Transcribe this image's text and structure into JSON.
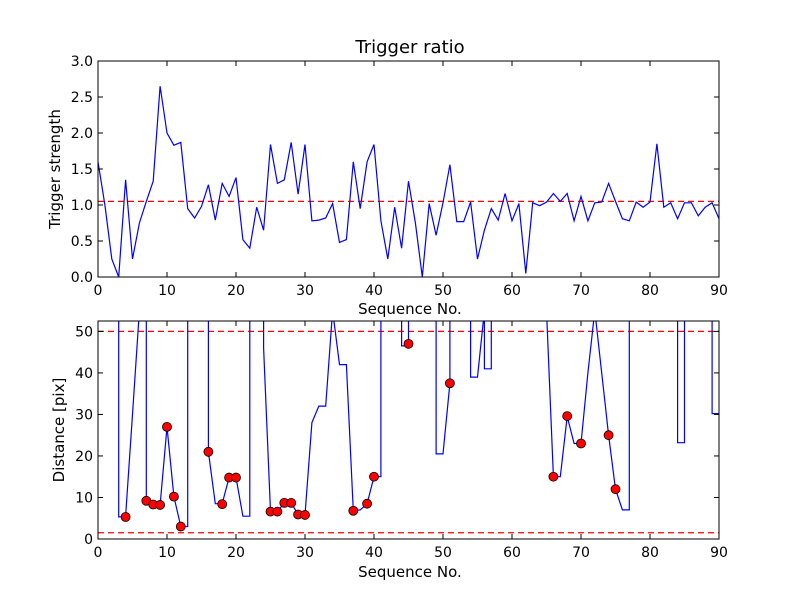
{
  "chart_data": [
    {
      "type": "line",
      "title": "Trigger ratio",
      "xlabel": "Sequence No.",
      "ylabel": "Trigger strength",
      "xlim": [
        0,
        90
      ],
      "ylim": [
        0,
        3.0
      ],
      "xticks": [
        0,
        10,
        20,
        30,
        40,
        50,
        60,
        70,
        80,
        90
      ],
      "yticks": [
        0.0,
        0.5,
        1.0,
        1.5,
        2.0,
        2.5,
        3.0
      ],
      "ytick_labels": [
        "0.0",
        "0.5",
        "1.0",
        "1.5",
        "2.0",
        "2.5",
        "3.0"
      ],
      "line_color": "#0000ff",
      "reference_lines": [
        {
          "y": 1.05,
          "color": "#ff0000",
          "style": "dashed"
        }
      ],
      "series": [
        {
          "x": [
            0,
            1,
            2,
            3,
            4,
            5,
            6,
            7,
            8,
            9,
            10,
            11,
            12,
            13,
            14,
            15,
            16,
            17,
            18,
            19,
            20,
            21,
            22,
            23,
            24,
            25,
            26,
            27,
            28,
            29,
            30,
            31,
            32,
            33,
            34,
            35,
            36,
            37,
            38,
            39,
            40,
            41,
            42,
            43,
            44,
            45,
            46,
            47,
            48,
            49,
            50,
            51,
            52,
            53,
            54,
            55,
            56,
            57,
            58,
            59,
            60,
            61,
            62,
            63,
            64,
            65,
            66,
            67,
            68,
            69,
            70,
            71,
            72,
            73,
            74,
            75,
            76,
            77,
            78,
            79,
            80,
            81,
            82,
            83,
            84,
            85,
            86,
            87,
            88,
            89,
            90
          ],
          "y": [
            1.6,
            1.0,
            0.25,
            0.0,
            1.35,
            0.25,
            0.75,
            1.05,
            1.33,
            2.65,
            2.0,
            1.83,
            1.87,
            0.95,
            0.82,
            0.98,
            1.28,
            0.79,
            1.3,
            1.12,
            1.38,
            0.52,
            0.4,
            0.97,
            0.65,
            1.84,
            1.3,
            1.35,
            1.87,
            1.15,
            1.84,
            0.78,
            0.79,
            0.82,
            1.02,
            0.48,
            0.52,
            1.6,
            0.95,
            1.6,
            1.84,
            0.78,
            0.25,
            0.97,
            0.4,
            1.33,
            0.75,
            0.0,
            1.02,
            0.58,
            1.03,
            1.56,
            0.77,
            0.77,
            1.04,
            0.25,
            0.65,
            0.95,
            0.79,
            1.16,
            0.78,
            1.02,
            0.05,
            1.03,
            0.99,
            1.04,
            1.16,
            1.05,
            1.16,
            0.78,
            1.12,
            0.78,
            1.03,
            1.04,
            1.3,
            1.05,
            0.81,
            0.78,
            1.04,
            0.97,
            1.04,
            1.85,
            0.97,
            1.03,
            0.81,
            1.03,
            1.03,
            0.85,
            0.97,
            1.03,
            0.81
          ]
        }
      ]
    },
    {
      "type": "line",
      "xlabel": "Sequence No.",
      "ylabel": "Distance [pix]",
      "xlim": [
        0,
        90
      ],
      "ylim": [
        0,
        52.5
      ],
      "xticks": [
        0,
        10,
        20,
        30,
        40,
        50,
        60,
        70,
        80,
        90
      ],
      "yticks": [
        0,
        10,
        20,
        30,
        40,
        50
      ],
      "line_color": "#0000ff",
      "marker_color": "#ff0000",
      "reference_lines": [
        {
          "y": 50,
          "color": "#ff0000",
          "style": "dashed"
        },
        {
          "y": 1.5,
          "color": "#ff0000",
          "style": "dashed"
        }
      ],
      "series": [
        {
          "x": [
            3,
            3,
            4,
            5,
            6,
            6,
            7,
            7,
            8,
            9,
            10,
            11,
            12,
            13,
            13,
            16,
            16,
            17,
            18,
            19,
            20,
            21,
            22,
            22,
            24,
            24,
            25,
            26,
            27,
            28,
            29,
            30,
            31,
            32,
            33,
            34,
            34,
            35,
            36,
            37,
            38,
            39,
            40,
            41,
            41,
            44,
            44,
            45,
            45,
            49,
            49,
            50,
            51,
            51,
            54,
            54,
            55,
            56,
            56,
            57,
            57,
            58,
            63,
            63,
            64,
            65,
            66,
            67,
            68,
            69,
            70,
            71,
            72,
            72,
            74,
            75,
            76,
            77,
            77,
            84,
            84,
            85,
            85,
            89,
            89,
            90
          ],
          "y": [
            55,
            5.3,
            5.5,
            30,
            55,
            55,
            55,
            9.3,
            8.3,
            8.2,
            27,
            10.2,
            3,
            3,
            55,
            55,
            21,
            8.5,
            8.5,
            14.8,
            14.8,
            5.5,
            5.5,
            55,
            55,
            46,
            6.6,
            6.6,
            8.7,
            8.7,
            5.9,
            5.8,
            28,
            32,
            32,
            55,
            55,
            42,
            42,
            6.8,
            7,
            8.5,
            15,
            15,
            55,
            55,
            46.5,
            46.5,
            55,
            55,
            20.5,
            20.5,
            37.5,
            55,
            55,
            39,
            39,
            55,
            41,
            41,
            55,
            55,
            55,
            55,
            55,
            55,
            15,
            15,
            29.5,
            23,
            23,
            40,
            55,
            55,
            25,
            12,
            7,
            7,
            55,
            55,
            23.2,
            23.2,
            55,
            55,
            30.2,
            30.2
          ]
        }
      ],
      "markers": {
        "x": [
          4,
          7,
          8,
          9,
          10,
          11,
          12,
          16,
          18,
          19,
          20,
          25,
          26,
          27,
          28,
          29,
          30,
          37,
          39,
          40,
          45,
          51,
          66,
          68,
          70,
          74,
          75
        ],
        "y": [
          5.3,
          9.2,
          8.3,
          8.2,
          27,
          10.2,
          3,
          21,
          8.4,
          14.8,
          14.8,
          6.6,
          6.6,
          8.7,
          8.7,
          5.9,
          5.8,
          6.8,
          8.5,
          15,
          47,
          37.5,
          15,
          29.6,
          23,
          25,
          12
        ]
      }
    }
  ]
}
